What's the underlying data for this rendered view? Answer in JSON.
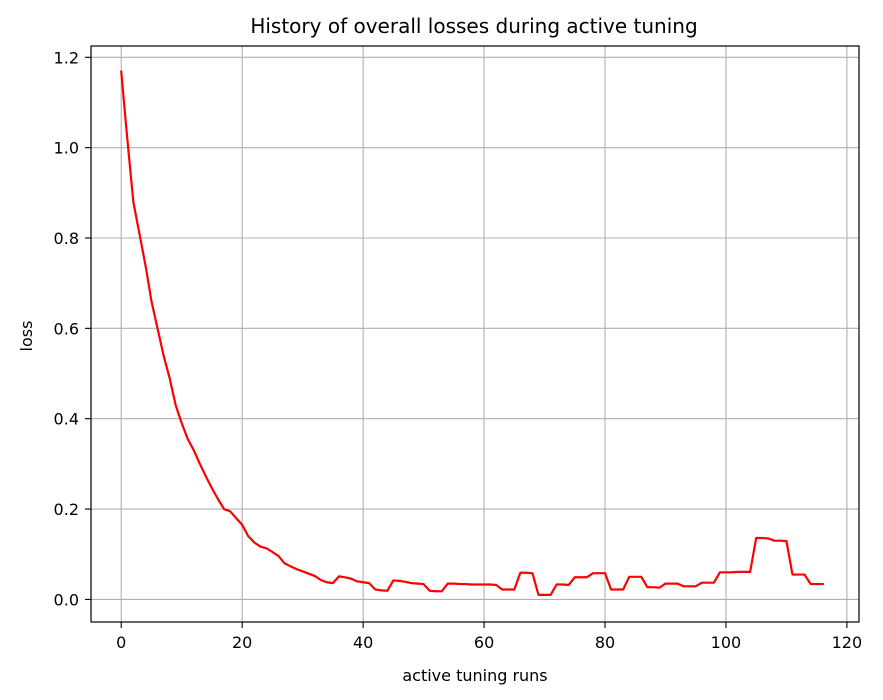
{
  "chart_data": {
    "type": "line",
    "title": "History of overall losses during active tuning",
    "xlabel": "active tuning runs",
    "ylabel": "loss",
    "xlim": [
      -5,
      122
    ],
    "ylim": [
      -0.05,
      1.225
    ],
    "xticks": [
      0,
      20,
      40,
      60,
      80,
      100,
      120
    ],
    "yticks": [
      0.0,
      0.2,
      0.4,
      0.6,
      0.8,
      1.0,
      1.2
    ],
    "xtick_labels": [
      "0",
      "20",
      "40",
      "60",
      "80",
      "100",
      "120"
    ],
    "ytick_labels": [
      "0.0",
      "0.2",
      "0.4",
      "0.6",
      "0.8",
      "1.0",
      "1.2"
    ],
    "grid": true,
    "series": [
      {
        "color": "#ff0000",
        "x": [
          0,
          1,
          2,
          3,
          4,
          5,
          6,
          7,
          8,
          9,
          10,
          11,
          12,
          13,
          14,
          15,
          16,
          17,
          18,
          19,
          20,
          21,
          22,
          23,
          24,
          25,
          26,
          27,
          28,
          29,
          30,
          31,
          32,
          33,
          34,
          35,
          36,
          37,
          38,
          39,
          40,
          41,
          42,
          43,
          44,
          45,
          46,
          47,
          48,
          49,
          50,
          51,
          52,
          53,
          54,
          55,
          56,
          57,
          58,
          59,
          60,
          61,
          62,
          63,
          64,
          65,
          66,
          67,
          68,
          69,
          70,
          71,
          72,
          73,
          74,
          75,
          76,
          77,
          78,
          79,
          80,
          81,
          82,
          83,
          84,
          85,
          86,
          87,
          88,
          89,
          90,
          91,
          92,
          93,
          94,
          95,
          96,
          97,
          98,
          99,
          100,
          101,
          102,
          103,
          104,
          105,
          106,
          107,
          108,
          109,
          110,
          111,
          112,
          113,
          114,
          115,
          116
        ],
        "values": [
          1.168,
          1.02,
          0.88,
          0.81,
          0.74,
          0.66,
          0.6,
          0.54,
          0.49,
          0.43,
          0.39,
          0.355,
          0.33,
          0.3,
          0.272,
          0.246,
          0.222,
          0.2,
          0.195,
          0.18,
          0.165,
          0.14,
          0.126,
          0.117,
          0.113,
          0.105,
          0.096,
          0.08,
          0.073,
          0.067,
          0.062,
          0.057,
          0.052,
          0.043,
          0.038,
          0.036,
          0.051,
          0.049,
          0.046,
          0.04,
          0.038,
          0.036,
          0.022,
          0.02,
          0.019,
          0.042,
          0.041,
          0.039,
          0.036,
          0.035,
          0.034,
          0.019,
          0.018,
          0.018,
          0.035,
          0.035,
          0.034,
          0.034,
          0.033,
          0.033,
          0.033,
          0.033,
          0.032,
          0.022,
          0.022,
          0.022,
          0.059,
          0.059,
          0.058,
          0.01,
          0.01,
          0.01,
          0.033,
          0.033,
          0.032,
          0.049,
          0.049,
          0.049,
          0.058,
          0.058,
          0.058,
          0.022,
          0.022,
          0.022,
          0.05,
          0.05,
          0.05,
          0.027,
          0.027,
          0.026,
          0.035,
          0.035,
          0.035,
          0.029,
          0.029,
          0.029,
          0.037,
          0.037,
          0.037,
          0.06,
          0.06,
          0.06,
          0.061,
          0.061,
          0.061,
          0.136,
          0.136,
          0.135,
          0.13,
          0.13,
          0.129,
          0.055,
          0.055,
          0.055,
          0.034,
          0.034,
          0.034
        ]
      }
    ]
  }
}
